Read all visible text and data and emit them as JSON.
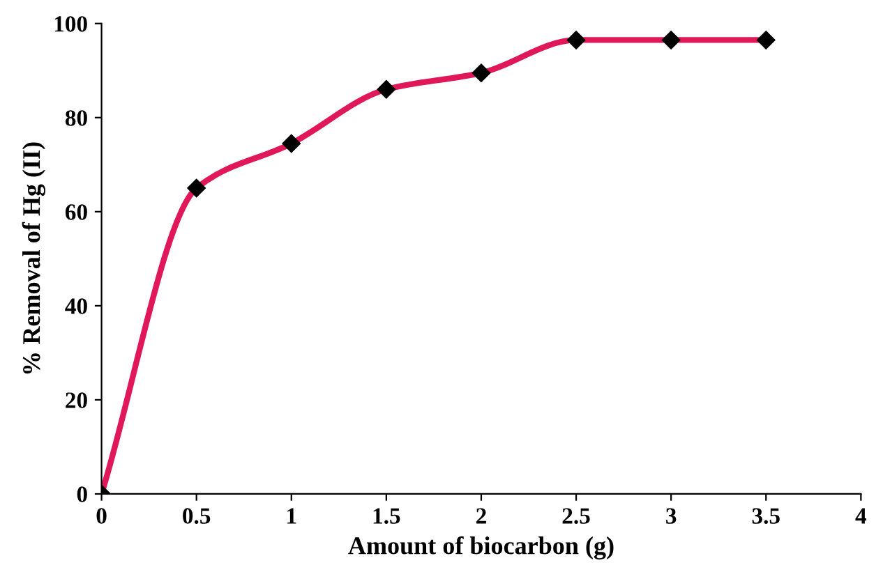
{
  "chart_data": {
    "type": "line",
    "xlabel": "Amount of biocarbon (g)",
    "ylabel": "% Removal of Hg (II)",
    "x": [
      0,
      0.5,
      1,
      1.5,
      2,
      2.5,
      3,
      3.5
    ],
    "series": [
      {
        "color": "#e0185a",
        "values": [
          0,
          65,
          74.5,
          86,
          89.5,
          96.5,
          96.5,
          96.5
        ]
      }
    ],
    "xlim": [
      0,
      4
    ],
    "xticks": [
      0,
      0.5,
      1,
      1.5,
      2,
      2.5,
      3,
      3.5,
      4
    ],
    "ylim": [
      0,
      100
    ],
    "yticks": [
      0,
      20,
      40,
      60,
      80,
      100
    ],
    "grid": false,
    "legend": false,
    "marker": "diamond",
    "line_style": "solid"
  }
}
